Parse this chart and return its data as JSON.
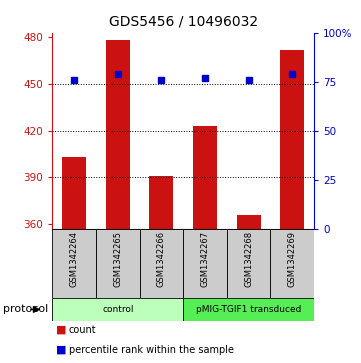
{
  "title": "GDS5456 / 10496032",
  "samples": [
    "GSM1342264",
    "GSM1342265",
    "GSM1342266",
    "GSM1342267",
    "GSM1342268",
    "GSM1342269"
  ],
  "counts": [
    403,
    478,
    391,
    423,
    366,
    472
  ],
  "percentile_ranks": [
    76,
    79,
    76,
    77,
    76,
    79
  ],
  "ymin": 357,
  "ymax": 483,
  "yticks_left": [
    360,
    390,
    420,
    450,
    480
  ],
  "yticks_right": [
    0,
    25,
    50,
    75,
    100
  ],
  "yright_min": 0,
  "yright_max": 100,
  "groups": [
    {
      "label": "control",
      "samples": [
        0,
        1,
        2
      ],
      "color": "#bbffbb"
    },
    {
      "label": "pMIG-TGIF1 transduced",
      "samples": [
        3,
        4,
        5
      ],
      "color": "#55ee55"
    }
  ],
  "bar_color": "#cc1111",
  "dot_color": "#0000cc",
  "bg_plot": "#ffffff",
  "bg_label": "#cccccc",
  "title_fontsize": 10,
  "tick_fontsize": 7.5,
  "protocol_label": "protocol",
  "legend_count": "count",
  "legend_percentile": "percentile rank within the sample"
}
